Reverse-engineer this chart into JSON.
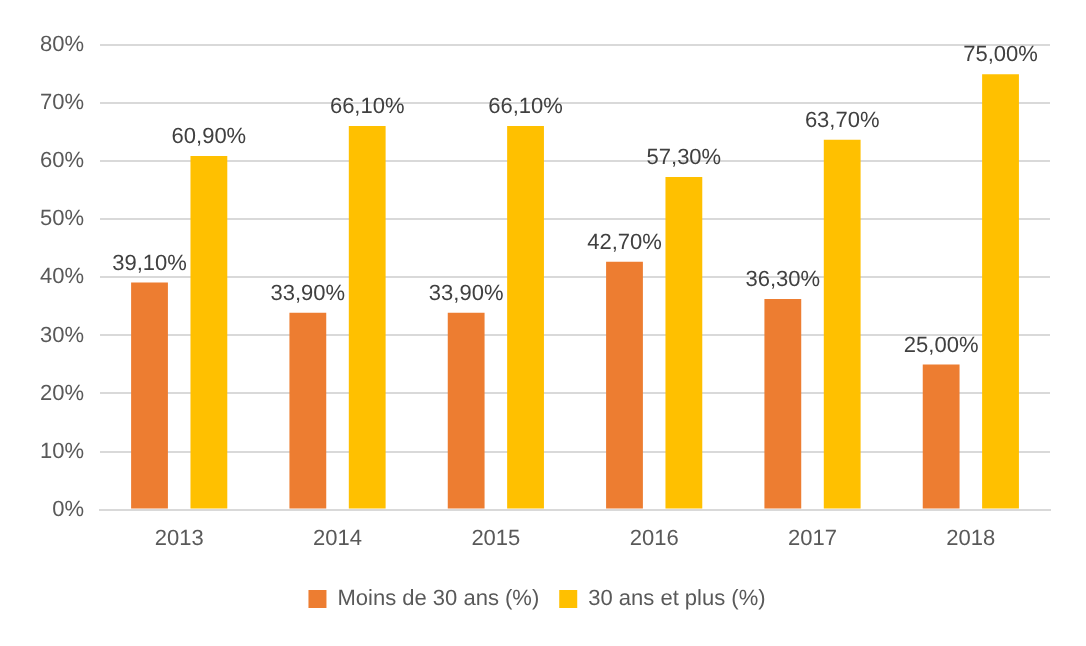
{
  "chart_data": {
    "type": "bar",
    "categories": [
      "2013",
      "2014",
      "2015",
      "2016",
      "2017",
      "2018"
    ],
    "series": [
      {
        "name": "Moins de 30 ans (%)",
        "color": "#ed7d31",
        "values": [
          39.1,
          33.9,
          33.9,
          42.7,
          36.3,
          25.0
        ],
        "value_labels": [
          "39,10%",
          "33,90%",
          "33,90%",
          "42,70%",
          "36,30%",
          "25,00%"
        ]
      },
      {
        "name": "30 ans et plus (%)",
        "color": "#ffc000",
        "values": [
          60.9,
          66.1,
          66.1,
          57.3,
          63.7,
          75.0
        ],
        "value_labels": [
          "60,90%",
          "66,10%",
          "66,10%",
          "57,30%",
          "63,70%",
          "75,00%"
        ]
      }
    ],
    "ylim": [
      0,
      80
    ],
    "yticks": [
      {
        "value": 0,
        "label": "0%"
      },
      {
        "value": 10,
        "label": "10%"
      },
      {
        "value": 20,
        "label": "20%"
      },
      {
        "value": 30,
        "label": "30%"
      },
      {
        "value": 40,
        "label": "40%"
      },
      {
        "value": 50,
        "label": "50%"
      },
      {
        "value": 60,
        "label": "60%"
      },
      {
        "value": 70,
        "label": "70%"
      },
      {
        "value": 80,
        "label": "80%"
      }
    ],
    "grid": "y",
    "legend": "bottom"
  }
}
